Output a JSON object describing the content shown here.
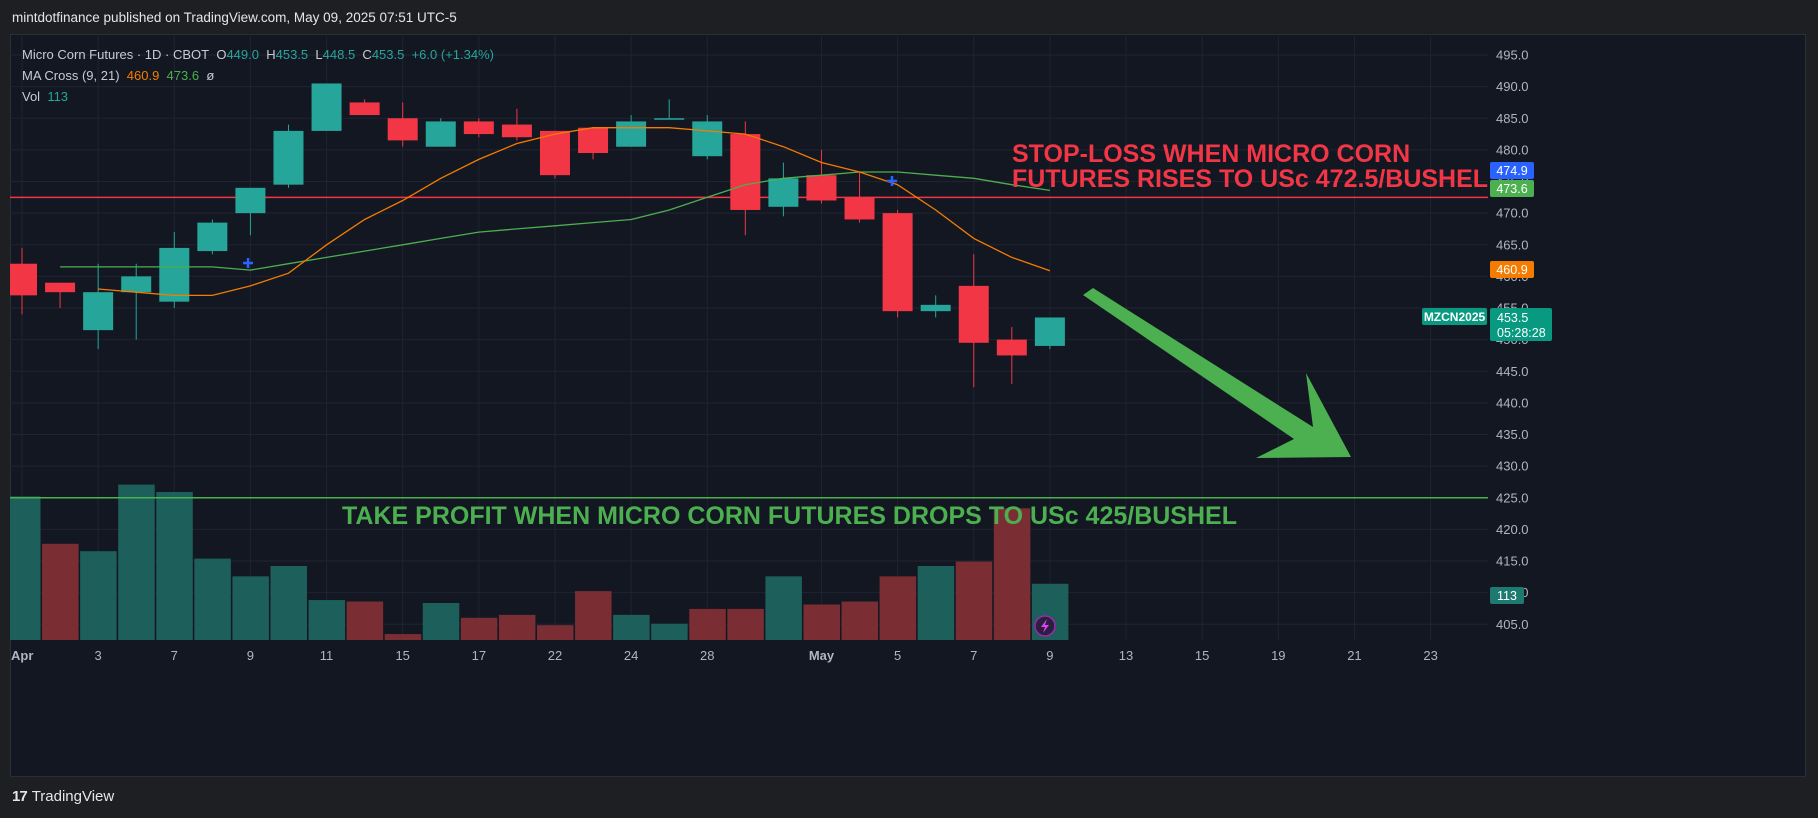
{
  "header": {
    "published_text": "mintdotfinance published on TradingView.com, May 09, 2025 07:51 UTC-5"
  },
  "legend": {
    "symbol": "Micro Corn Futures · 1D · CBOT",
    "o_label": "O",
    "o_value": "449.0",
    "h_label": "H",
    "h_value": "453.5",
    "l_label": "L",
    "l_value": "448.5",
    "c_label": "C",
    "c_value": "453.5",
    "change": "+6.0 (+1.34%)",
    "ma_label": "MA Cross (9, 21)",
    "ma_fast": "460.9",
    "ma_slow": "473.6",
    "ma_extra": "ø",
    "vol_label": "Vol",
    "vol_value": "113"
  },
  "annotations": {
    "stop_loss_line1": "STOP-LOSS WHEN MICRO CORN",
    "stop_loss_line2": "FUTURES RISES TO USc 472.5/BUSHEL",
    "take_profit": "TAKE PROFIT WHEN MICRO CORN FUTURES DROPS TO USc 425/BUSHEL"
  },
  "price_tags": {
    "tag_blue": "474.9",
    "tag_green": "473.6",
    "tag_orange": "460.9",
    "symbol_tag": "MZCN2025",
    "price_tag": "453.5",
    "countdown": "05:28:28",
    "vol_tag": "113"
  },
  "footer": {
    "brand": "TradingView"
  },
  "colors": {
    "up": "#26a69a",
    "down": "#f23645",
    "vol_up": "#1d5f5b",
    "vol_down": "#7a2e33",
    "ma_fast": "#f57c00",
    "ma_slow": "#4caf50",
    "stop_line": "#f23645",
    "profit_line": "#4caf50",
    "arrow": "#4caf50",
    "tag_blue": "#2962ff"
  },
  "chart_data": {
    "type": "candlestick",
    "y_ticks": [
      "495.0",
      "490.0",
      "485.0",
      "480.0",
      "475.0",
      "470.0",
      "465.0",
      "460.0",
      "455.0",
      "450.0",
      "445.0",
      "440.0",
      "435.0",
      "430.0",
      "425.0",
      "420.0",
      "415.0",
      "410.0",
      "405.0"
    ],
    "x_ticks": [
      "Apr",
      "3",
      "7",
      "9",
      "11",
      "15",
      "17",
      "22",
      "24",
      "28",
      "May",
      "5",
      "7",
      "9",
      "13",
      "15",
      "19",
      "21",
      "23"
    ],
    "stop_loss": 472.5,
    "take_profit": 425,
    "candles": [
      {
        "o": 462.0,
        "h": 464.5,
        "l": 454.0,
        "c": 457.0
      },
      {
        "o": 459.0,
        "h": 459.0,
        "l": 455.0,
        "c": 457.5
      },
      {
        "o": 451.5,
        "h": 462.0,
        "l": 448.5,
        "c": 457.5
      },
      {
        "o": 457.5,
        "h": 462.0,
        "l": 450.0,
        "c": 460.0
      },
      {
        "o": 456.0,
        "h": 467.0,
        "l": 455.0,
        "c": 464.5
      },
      {
        "o": 464.0,
        "h": 469.0,
        "l": 463.5,
        "c": 468.5
      },
      {
        "o": 470.0,
        "h": 474.0,
        "l": 466.5,
        "c": 474.0
      },
      {
        "o": 474.5,
        "h": 484.0,
        "l": 474.0,
        "c": 483.0
      },
      {
        "o": 483.0,
        "h": 490.5,
        "l": 483.0,
        "c": 490.5
      },
      {
        "o": 487.5,
        "h": 488.0,
        "l": 485.5,
        "c": 485.5
      },
      {
        "o": 485.0,
        "h": 487.5,
        "l": 480.5,
        "c": 481.5
      },
      {
        "o": 480.5,
        "h": 485.0,
        "l": 480.5,
        "c": 484.5
      },
      {
        "o": 484.5,
        "h": 485.0,
        "l": 482.0,
        "c": 482.5
      },
      {
        "o": 484.0,
        "h": 486.5,
        "l": 481.5,
        "c": 482.0
      },
      {
        "o": 483.0,
        "h": 483.0,
        "l": 475.5,
        "c": 476.0
      },
      {
        "o": 483.5,
        "h": 483.5,
        "l": 478.5,
        "c": 479.5
      },
      {
        "o": 480.5,
        "h": 485.5,
        "l": 480.5,
        "c": 484.5
      },
      {
        "o": 485.0,
        "h": 488.0,
        "l": 485.0,
        "c": 485.0
      },
      {
        "o": 479.0,
        "h": 485.5,
        "l": 478.5,
        "c": 484.5
      },
      {
        "o": 482.5,
        "h": 484.5,
        "l": 466.5,
        "c": 470.5
      },
      {
        "o": 471.0,
        "h": 478.0,
        "l": 469.5,
        "c": 475.5
      },
      {
        "o": 476.0,
        "h": 480.0,
        "l": 471.5,
        "c": 472.0
      },
      {
        "o": 472.5,
        "h": 476.5,
        "l": 468.5,
        "c": 469.0
      },
      {
        "o": 470.0,
        "h": 470.5,
        "l": 453.5,
        "c": 454.5
      },
      {
        "o": 454.5,
        "h": 457.0,
        "l": 453.5,
        "c": 455.5
      },
      {
        "o": 458.5,
        "h": 463.5,
        "l": 442.5,
        "c": 449.5
      },
      {
        "o": 450.0,
        "h": 452.0,
        "l": 443.0,
        "c": 447.5
      },
      {
        "o": 449.0,
        "h": 453.5,
        "l": 448.5,
        "c": 453.5
      }
    ],
    "volume_up": [
      true,
      false,
      true,
      true,
      true,
      true,
      true,
      true,
      true,
      false,
      false,
      true,
      false,
      false,
      false,
      false,
      true,
      true,
      false,
      false,
      true,
      false,
      false,
      false,
      true,
      false,
      false,
      true
    ],
    "volume_rel": [
      0.97,
      0.65,
      0.6,
      1.05,
      1.0,
      0.55,
      0.43,
      0.5,
      0.27,
      0.26,
      0.04,
      0.25,
      0.15,
      0.17,
      0.1,
      0.33,
      0.17,
      0.11,
      0.21,
      0.21,
      0.43,
      0.24,
      0.26,
      0.43,
      0.5,
      0.53,
      0.89,
      0.38
    ],
    "ma_fast": [
      null,
      458.0,
      457.5,
      457.0,
      457.0,
      458.5,
      460.5,
      465.0,
      469.0,
      472.0,
      475.5,
      478.5,
      481.0,
      482.5,
      483.5,
      483.5,
      483.5,
      483.0,
      482.5,
      480.5,
      478.0,
      476.5,
      474.5,
      470.5,
      466.0,
      463.0,
      460.9
    ],
    "ma_slow": [
      461.5,
      461.5,
      461.5,
      461.5,
      461.5,
      461.0,
      462.0,
      463.0,
      464.0,
      465.0,
      466.0,
      467.0,
      467.5,
      468.0,
      468.5,
      469.0,
      470.5,
      472.5,
      474.5,
      475.5,
      476.0,
      476.5,
      476.5,
      476.0,
      475.5,
      474.5,
      473.6
    ]
  }
}
